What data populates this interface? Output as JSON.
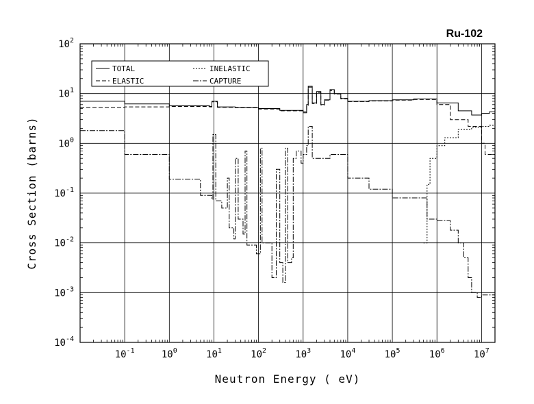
{
  "chart_data": {
    "type": "line",
    "title": "Ru-102",
    "xlabel": "Neutron Energy ( eV)",
    "ylabel": "Cross Section (barns)",
    "x_scale": "log",
    "y_scale": "log",
    "xlim": [
      0.01,
      20000000
    ],
    "ylim": [
      0.0001,
      100
    ],
    "grid": true,
    "legend_position": "top-left",
    "x_ticks": [
      {
        "base": "10",
        "exp": "-1",
        "value": 0.1
      },
      {
        "base": "10",
        "exp": "0",
        "value": 1
      },
      {
        "base": "10",
        "exp": "1",
        "value": 10
      },
      {
        "base": "10",
        "exp": "2",
        "value": 100
      },
      {
        "base": "10",
        "exp": "3",
        "value": 1000
      },
      {
        "base": "10",
        "exp": "4",
        "value": 10000
      },
      {
        "base": "10",
        "exp": "5",
        "value": 100000
      },
      {
        "base": "10",
        "exp": "6",
        "value": 1000000
      },
      {
        "base": "10",
        "exp": "7",
        "value": 10000000
      }
    ],
    "y_ticks": [
      {
        "base": "10",
        "exp": "2",
        "value": 100
      },
      {
        "base": "10",
        "exp": "1",
        "value": 10
      },
      {
        "base": "10",
        "exp": "0",
        "value": 1
      },
      {
        "base": "10",
        "exp": "-1",
        "value": 0.1
      },
      {
        "base": "10",
        "exp": "-2",
        "value": 0.01
      },
      {
        "base": "10",
        "exp": "-3",
        "value": 0.001
      },
      {
        "base": "10",
        "exp": "-4",
        "value": 0.0001
      }
    ],
    "series": [
      {
        "name": "TOTAL",
        "dash": "solid",
        "points": [
          [
            0.01,
            7.0
          ],
          [
            0.1,
            6.2
          ],
          [
            1,
            5.7
          ],
          [
            8,
            5.5
          ],
          [
            9,
            7.0
          ],
          [
            11,
            7.0
          ],
          [
            12,
            5.4
          ],
          [
            30,
            5.3
          ],
          [
            100,
            5.0
          ],
          [
            300,
            4.6
          ],
          [
            1000,
            4.3
          ],
          [
            1200,
            6.0
          ],
          [
            1300,
            14.0
          ],
          [
            1600,
            6.5
          ],
          [
            2000,
            11.0
          ],
          [
            2500,
            6.0
          ],
          [
            3000,
            7.5
          ],
          [
            4000,
            12.0
          ],
          [
            5000,
            10.0
          ],
          [
            7000,
            8.0
          ],
          [
            10000,
            7.0
          ],
          [
            30000,
            7.2
          ],
          [
            100000,
            7.5
          ],
          [
            300000,
            7.8
          ],
          [
            1000000,
            6.5
          ],
          [
            3000000,
            4.5
          ],
          [
            6000000,
            3.7
          ],
          [
            10000000,
            4.0
          ],
          [
            15000000,
            4.3
          ],
          [
            20000000,
            4.0
          ]
        ]
      },
      {
        "name": "ELASTIC",
        "dash": "dashed",
        "points": [
          [
            0.01,
            5.3
          ],
          [
            0.1,
            5.4
          ],
          [
            1,
            5.5
          ],
          [
            8,
            5.4
          ],
          [
            9,
            6.8
          ],
          [
            11,
            6.8
          ],
          [
            12,
            5.3
          ],
          [
            30,
            5.2
          ],
          [
            100,
            4.9
          ],
          [
            300,
            4.5
          ],
          [
            1000,
            4.1
          ],
          [
            1200,
            5.8
          ],
          [
            1300,
            13.5
          ],
          [
            1600,
            6.3
          ],
          [
            2000,
            10.5
          ],
          [
            2500,
            5.9
          ],
          [
            3000,
            7.4
          ],
          [
            4000,
            11.5
          ],
          [
            5000,
            9.8
          ],
          [
            7000,
            7.8
          ],
          [
            10000,
            6.9
          ],
          [
            30000,
            7.1
          ],
          [
            100000,
            7.4
          ],
          [
            300000,
            7.6
          ],
          [
            1000000,
            6.0
          ],
          [
            2000000,
            3.0
          ],
          [
            5000000,
            2.2
          ],
          [
            10000000,
            1.0
          ],
          [
            12000000,
            0.6
          ],
          [
            20000000,
            0.4
          ]
        ]
      },
      {
        "name": "INELASTIC",
        "dash": "dotted",
        "points": [
          [
            500000,
            0.01
          ],
          [
            600000,
            0.15
          ],
          [
            700000,
            0.5
          ],
          [
            1000000,
            0.9
          ],
          [
            1500000,
            1.3
          ],
          [
            3000000,
            1.9
          ],
          [
            6000000,
            2.1
          ],
          [
            10000000,
            2.2
          ],
          [
            15000000,
            2.3
          ],
          [
            20000000,
            2.3
          ]
        ]
      },
      {
        "name": "CAPTURE",
        "dash": "dashdot",
        "points": [
          [
            0.01,
            1.8
          ],
          [
            0.1,
            0.6
          ],
          [
            1,
            0.19
          ],
          [
            5,
            0.09
          ],
          [
            9,
            0.075
          ],
          [
            9.5,
            1.5
          ],
          [
            10.5,
            1.5
          ],
          [
            11,
            0.07
          ],
          [
            15,
            0.05
          ],
          [
            20,
            0.2
          ],
          [
            22,
            0.02
          ],
          [
            28,
            0.012
          ],
          [
            30,
            0.5
          ],
          [
            35,
            0.03
          ],
          [
            45,
            0.015
          ],
          [
            50,
            0.7
          ],
          [
            55,
            0.009
          ],
          [
            90,
            0.006
          ],
          [
            110,
            0.8
          ],
          [
            120,
            0.01
          ],
          [
            200,
            0.002
          ],
          [
            250,
            0.3
          ],
          [
            300,
            0.004
          ],
          [
            350,
            0.0016
          ],
          [
            400,
            0.8
          ],
          [
            450,
            0.004
          ],
          [
            550,
            0.005
          ],
          [
            600,
            0.5
          ],
          [
            700,
            0.7
          ],
          [
            900,
            0.4
          ],
          [
            1000,
            0.6
          ],
          [
            1200,
            0.9
          ],
          [
            1300,
            2.2
          ],
          [
            1600,
            0.5
          ],
          [
            2000,
            0.5
          ],
          [
            3000,
            0.5
          ],
          [
            4000,
            0.6
          ],
          [
            10000,
            0.2
          ],
          [
            30000,
            0.12
          ],
          [
            100000,
            0.08
          ],
          [
            300000,
            0.08
          ],
          [
            500000,
            0.08
          ],
          [
            600000,
            0.03
          ],
          [
            1000000,
            0.028
          ],
          [
            2000000,
            0.018
          ],
          [
            3000000,
            0.01
          ],
          [
            4000000,
            0.005
          ],
          [
            5000000,
            0.002
          ],
          [
            6000000,
            0.001
          ],
          [
            8000000,
            0.0008
          ],
          [
            10000000,
            0.0009
          ],
          [
            20000000,
            0.0009
          ]
        ]
      }
    ]
  }
}
